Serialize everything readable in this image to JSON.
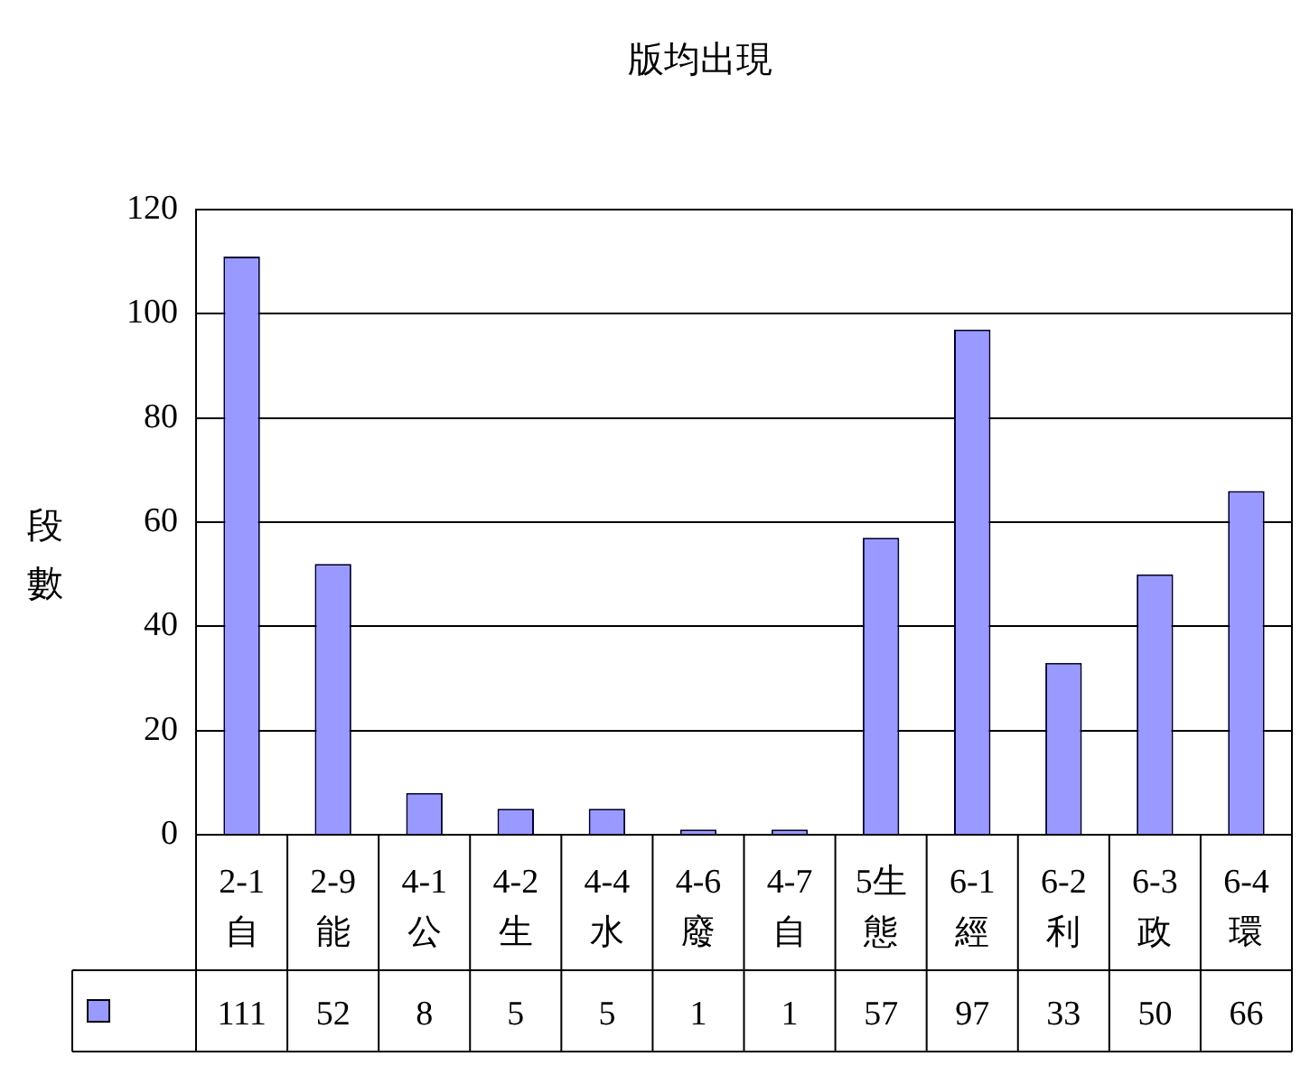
{
  "chart_data": {
    "type": "bar",
    "title": "版均出現",
    "ylabel": "段數",
    "categories": [
      "2-1自",
      "2-9能",
      "4-1公",
      "4-2生",
      "4-4水",
      "4-6廢",
      "4-7自",
      "5生態",
      "6-1經",
      "6-2利",
      "6-3政",
      "6-4環"
    ],
    "series": [
      {
        "color": "#9999ff",
        "values": [
          111,
          52,
          8,
          5,
          5,
          1,
          1,
          57,
          97,
          33,
          50,
          66
        ]
      }
    ],
    "ylim": [
      0,
      120
    ],
    "yticks": [
      0,
      20,
      40,
      60,
      80,
      100,
      120
    ],
    "grid": "y",
    "data_labels": true
  }
}
